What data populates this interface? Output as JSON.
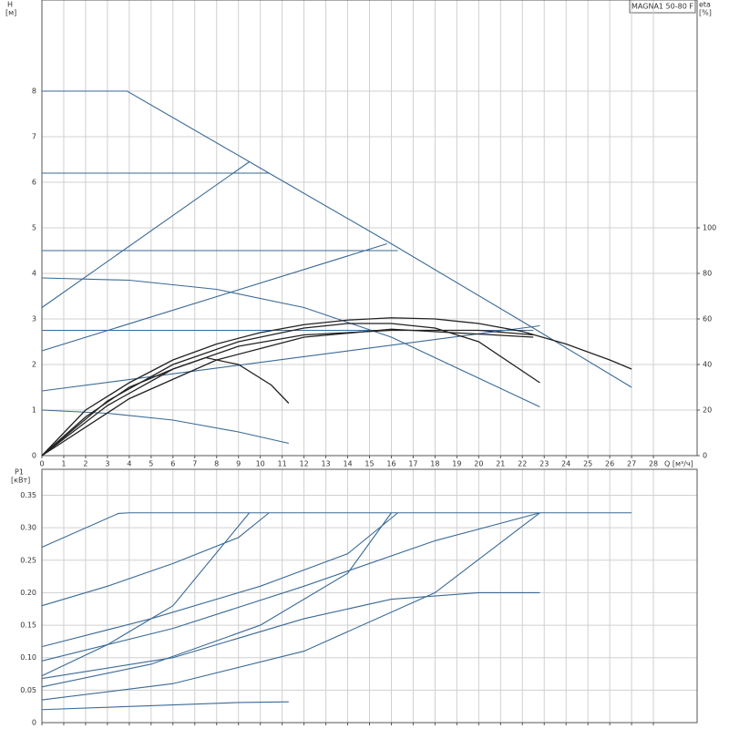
{
  "chart_data": [
    {
      "type": "line",
      "title": "MAGNA1 50-80 F",
      "ylabel": "H",
      "yunit": "[м]",
      "y2label": "eta",
      "y2unit": "[%]",
      "xlabel": "Q [м³/ч]",
      "xlim": [
        0,
        30
      ],
      "xticks": [
        0,
        1,
        2,
        3,
        4,
        5,
        6,
        7,
        8,
        9,
        10,
        11,
        12,
        13,
        14,
        15,
        16,
        17,
        18,
        19,
        20,
        21,
        22,
        23,
        24,
        25,
        26,
        27,
        28
      ],
      "ylim": [
        0,
        10
      ],
      "yticks": [
        0,
        1,
        2,
        3,
        4,
        5,
        6,
        7,
        8
      ],
      "y2lim": [
        0,
        200
      ],
      "y2ticks": [
        0,
        20,
        40,
        60,
        80,
        100
      ],
      "grid": true,
      "series": [
        {
          "color": "#3a6a96",
          "x": [
            0,
            3.9,
            10.4,
            16,
            22.5,
            27
          ],
          "values": [
            8,
            8,
            6.2,
            4.65,
            2.8,
            1.5
          ]
        },
        {
          "color": "#3a6a96",
          "x": [
            0,
            10.4
          ],
          "values": [
            6.2,
            6.2
          ]
        },
        {
          "color": "#3a6a96",
          "x": [
            0,
            16.3
          ],
          "values": [
            4.5,
            4.5
          ]
        },
        {
          "color": "#3a6a96",
          "x": [
            0,
            22.5
          ],
          "values": [
            2.75,
            2.75
          ]
        },
        {
          "color": "#3a6a96",
          "x": [
            0,
            9.5
          ],
          "values": [
            3.25,
            6.45
          ]
        },
        {
          "color": "#3a6a96",
          "x": [
            0,
            15.8
          ],
          "values": [
            2.3,
            4.65
          ]
        },
        {
          "color": "#3a6a96",
          "x": [
            0,
            22.8
          ],
          "values": [
            1.42,
            2.85
          ]
        },
        {
          "color": "#3a6a96",
          "x": [
            0,
            4,
            8,
            12,
            16,
            20,
            22.8
          ],
          "values": [
            3.9,
            3.85,
            3.65,
            3.25,
            2.6,
            1.7,
            1.07
          ]
        },
        {
          "color": "#3a6a96",
          "x": [
            0,
            3,
            6,
            9,
            11.3
          ],
          "values": [
            1,
            0.93,
            0.78,
            0.52,
            0.27
          ]
        },
        {
          "color": "#222222",
          "axis": "y2",
          "x": [
            0,
            2,
            4,
            6,
            8,
            10,
            12,
            14,
            16,
            18,
            20,
            22,
            24,
            26,
            27
          ],
          "values": [
            0,
            20,
            32,
            42,
            49,
            54,
            57.5,
            59.5,
            60.5,
            60,
            58,
            54.5,
            49,
            42,
            38
          ]
        },
        {
          "color": "#222222",
          "axis": "y2",
          "x": [
            0,
            3,
            6,
            9,
            12,
            14,
            16,
            18,
            20,
            22.8
          ],
          "values": [
            0,
            24,
            40,
            50,
            56,
            58,
            58,
            56,
            50,
            32
          ]
        },
        {
          "color": "#222222",
          "axis": "y2",
          "x": [
            0,
            2,
            4,
            6,
            7.5,
            9,
            10.5,
            11.3
          ],
          "values": [
            0,
            17,
            30,
            38,
            43,
            40,
            31,
            23
          ]
        },
        {
          "color": "#222222",
          "axis": "y2",
          "x": [
            0,
            3,
            6,
            9,
            12,
            16,
            20,
            22.5
          ],
          "values": [
            0,
            22,
            38,
            48,
            53,
            55,
            55,
            53
          ]
        },
        {
          "color": "#222222",
          "axis": "y2",
          "x": [
            0,
            4,
            8,
            12,
            16,
            22.5
          ],
          "values": [
            0,
            25,
            42,
            52,
            55.5,
            52
          ]
        }
      ]
    },
    {
      "type": "line",
      "ylabel": "P1",
      "yunit": "[кВт]",
      "xlim": [
        0,
        30
      ],
      "xticks": [
        0,
        1,
        2,
        3,
        4,
        5,
        6,
        7,
        8,
        9,
        10,
        11,
        12,
        13,
        14,
        15,
        16,
        17,
        18,
        19,
        20,
        21,
        22,
        23,
        24,
        25,
        26,
        27,
        28
      ],
      "ylim": [
        0,
        0.39
      ],
      "yticks": [
        0,
        0.05,
        {
          "value": 0.1,
          "label": "0.10"
        },
        0.15,
        {
          "value": 0.2,
          "label": "0.20"
        },
        0.25,
        {
          "value": 0.3,
          "label": "0.30"
        },
        0.35
      ],
      "grid": true,
      "series": [
        {
          "color": "#3a6a96",
          "x": [
            0,
            3.5,
            4,
            27
          ],
          "values": [
            0.27,
            0.322,
            0.323,
            0.323
          ]
        },
        {
          "color": "#3a6a96",
          "x": [
            0,
            3,
            6,
            9,
            10.4
          ],
          "values": [
            0.18,
            0.21,
            0.245,
            0.285,
            0.323
          ]
        },
        {
          "color": "#3a6a96",
          "x": [
            0,
            5,
            10,
            14,
            16.3
          ],
          "values": [
            0.117,
            0.16,
            0.21,
            0.26,
            0.323
          ]
        },
        {
          "color": "#3a6a96",
          "x": [
            0,
            6,
            12,
            18,
            22.8
          ],
          "values": [
            0.095,
            0.145,
            0.21,
            0.28,
            0.323
          ]
        },
        {
          "color": "#3a6a96",
          "x": [
            0,
            3,
            6,
            9.5
          ],
          "values": [
            0.072,
            0.12,
            0.18,
            0.323
          ]
        },
        {
          "color": "#3a6a96",
          "x": [
            0,
            5,
            10,
            14,
            16
          ],
          "values": [
            0.055,
            0.09,
            0.15,
            0.23,
            0.323
          ]
        },
        {
          "color": "#3a6a96",
          "x": [
            0,
            6,
            12,
            18,
            22.8
          ],
          "values": [
            0.035,
            0.06,
            0.11,
            0.2,
            0.323
          ]
        },
        {
          "color": "#3a6a96",
          "x": [
            0,
            6,
            12,
            16,
            20,
            22.8
          ],
          "values": [
            0.068,
            0.1,
            0.16,
            0.19,
            0.2,
            0.2
          ]
        },
        {
          "color": "#3a6a96",
          "x": [
            0,
            5,
            9,
            11.3
          ],
          "values": [
            0.02,
            0.026,
            0.031,
            0.032
          ]
        }
      ]
    }
  ]
}
